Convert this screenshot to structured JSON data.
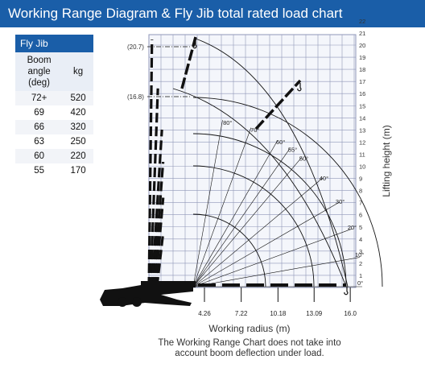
{
  "header": {
    "title": "Working Range Diagram & Fly Jib total rated load chart"
  },
  "load_table": {
    "title": "Fly Jib",
    "col_angle": "Boom angle (deg)",
    "col_angle_lines": [
      "Boom",
      "angle",
      "(deg)"
    ],
    "col_load": "kg",
    "rows": [
      {
        "angle": "72+",
        "load": "520"
      },
      {
        "angle": "69",
        "load": "420"
      },
      {
        "angle": "66",
        "load": "320"
      },
      {
        "angle": "63",
        "load": "250"
      },
      {
        "angle": "60",
        "load": "220"
      },
      {
        "angle": "55",
        "load": "170"
      }
    ]
  },
  "diagram": {
    "x_axis_label": "Working radius (m)",
    "y_axis_label": "Lifting height (m)",
    "radius_ticks": [
      "4.26",
      "7.22",
      "10.18",
      "13.09",
      "16.0"
    ],
    "height_ticks": [
      "1",
      "2",
      "3",
      "4",
      "5",
      "6",
      "7",
      "8",
      "9",
      "10",
      "11",
      "12",
      "13",
      "14",
      "15",
      "16",
      "17",
      "18",
      "19",
      "20",
      "21",
      "22"
    ],
    "height_marks": [
      "(20.7)",
      "(16.8)"
    ],
    "angle_labels": [
      "80°",
      "70°",
      "60°",
      "55°",
      "50°",
      "40°",
      "30°",
      "20°",
      "10°",
      "0°"
    ],
    "colors": {
      "grid": "#8f97b8",
      "accent": "#1a5ea8",
      "boom": "#111111"
    }
  },
  "caption": {
    "line1": "The Working Range Chart does not take into",
    "line2": "account boom deflection under load."
  }
}
